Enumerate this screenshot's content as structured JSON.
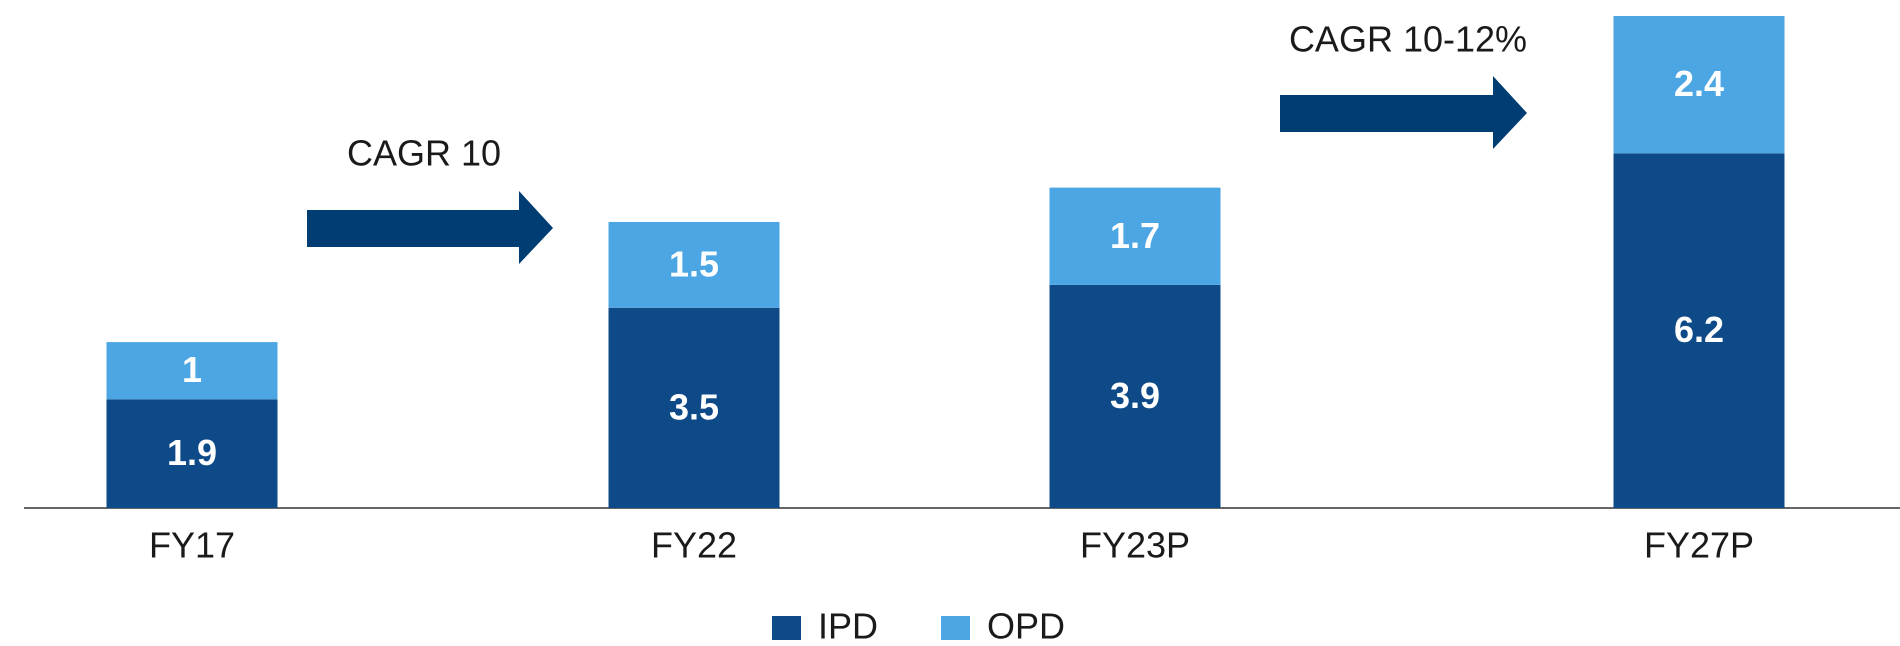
{
  "chart_data": {
    "type": "stacked_bar",
    "categories": [
      "FY17",
      "FY22",
      "FY23P",
      "FY27P"
    ],
    "series": [
      {
        "name": "IPD",
        "color": "#0d4a87",
        "values": [
          1.9,
          3.5,
          3.9,
          6.2
        ]
      },
      {
        "name": "OPD",
        "color": "#4da6e4",
        "values": [
          1.0,
          1.5,
          1.7,
          2.4
        ]
      }
    ],
    "annotations": [
      "CAGR 10",
      "CAGR 10-12%"
    ]
  }
}
